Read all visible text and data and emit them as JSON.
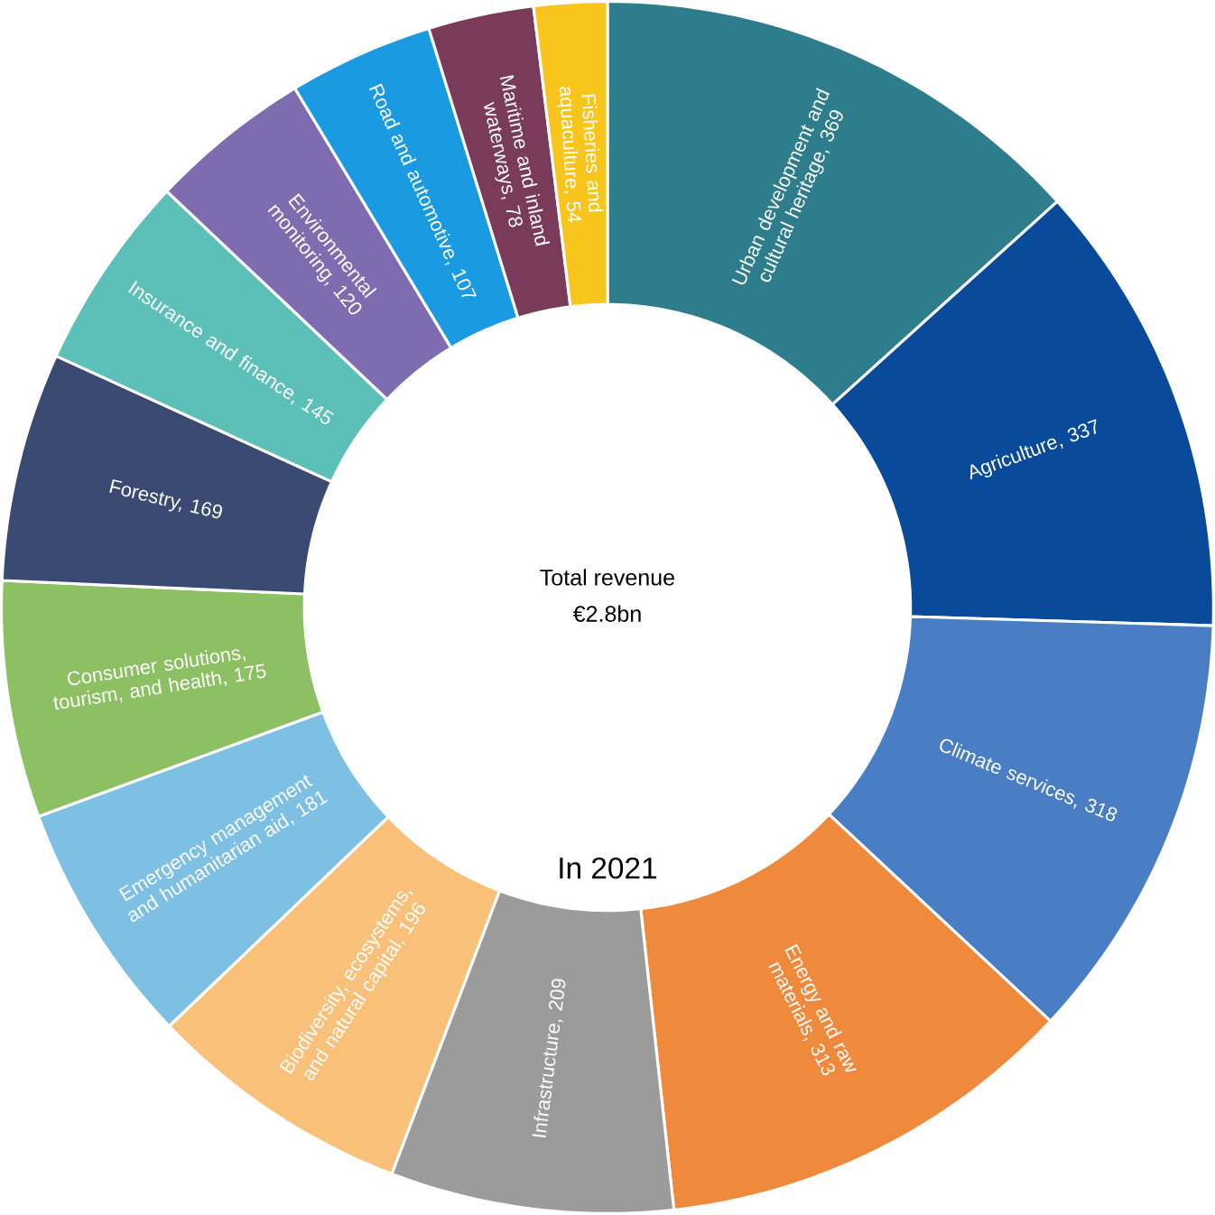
{
  "chart_data": {
    "type": "donut",
    "categories": [
      "Urban development and cultural heritage, 369",
      "Agriculture, 337",
      "Climate services, 318",
      "Energy and raw materials, 313",
      "Infrastructure, 209",
      "Biodiversity, ecosystems, and natural capital, 196",
      "Emergency management and humanitarian aid, 181",
      "Consumer solutions, tourism, and health, 175",
      "Forestry, 169",
      "Insurance and finance, 145",
      "Environmental monitoring, 120",
      "Road and automotive, 107",
      "Maritime and inland waterways, 78",
      "Fisheries and aquaculture, 54"
    ],
    "values": [
      369,
      337,
      318,
      313,
      209,
      196,
      181,
      175,
      169,
      145,
      120,
      107,
      78,
      54
    ],
    "colors": [
      "#2e7d8c",
      "#0a4a9a",
      "#4a7ec4",
      "#ef8a3c",
      "#9b9b9b",
      "#f9c07a",
      "#7ec0e4",
      "#8cc063",
      "#3a4a72",
      "#5cc0b8",
      "#7e6bb0",
      "#1a9ae0",
      "#7a3a5a",
      "#f8c51c"
    ],
    "annotations": [
      "Total revenue",
      "€2.8bn",
      "In 2021"
    ]
  }
}
